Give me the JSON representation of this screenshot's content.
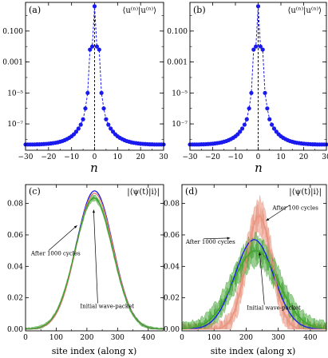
{
  "chart_data": [
    {
      "panel_id": "a",
      "panel_label": "(a)",
      "type": "scatter",
      "corner_label": "⟨u⁽ⁿ⁾|u⁽ⁿ⁾⟩",
      "xlabel": "n",
      "ylabel": "",
      "xlim": [
        -30,
        30
      ],
      "ylim_log10": [
        -8.7,
        0.85
      ],
      "log_y": true,
      "x_ticks": [
        -30,
        -20,
        -10,
        0,
        10,
        20,
        30
      ],
      "x_tick_labels": [
        "−30",
        "−20",
        "−10",
        "0",
        "10",
        "20",
        "30"
      ],
      "y_ticks_log10": [
        -1,
        -3,
        -5,
        -7
      ],
      "y_tick_labels": [
        "0.100",
        "0.001",
        "10⁻⁵",
        "10⁻⁷"
      ],
      "vline_x": 0,
      "series_color": "#1a1aee",
      "x": [
        -30,
        -29,
        -28,
        -27,
        -26,
        -25,
        -24,
        -23,
        -22,
        -21,
        -20,
        -19,
        -18,
        -17,
        -16,
        -15,
        -14,
        -13,
        -12,
        -11,
        -10,
        -9,
        -8,
        -7,
        -6,
        -5,
        -4,
        -3,
        -2,
        -1,
        0,
        1,
        2,
        3,
        4,
        5,
        6,
        7,
        8,
        9,
        10,
        11,
        12,
        13,
        14,
        15,
        16,
        17,
        18,
        19,
        20,
        21,
        22,
        23,
        24,
        25,
        26,
        27,
        28,
        29,
        30
      ],
      "log10_y": [
        -8.33,
        -8.33,
        -8.33,
        -8.33,
        -8.33,
        -8.32,
        -8.32,
        -8.31,
        -8.3,
        -8.29,
        -8.28,
        -8.26,
        -8.24,
        -8.22,
        -8.19,
        -8.15,
        -8.11,
        -8.05,
        -7.98,
        -7.9,
        -7.8,
        -7.67,
        -7.5,
        -7.3,
        -7.05,
        -6.7,
        -6.0,
        -5.0,
        -2.2,
        -2.0,
        0.6,
        -2.0,
        -2.2,
        -5.0,
        -6.0,
        -6.7,
        -7.05,
        -7.3,
        -7.5,
        -7.67,
        -7.8,
        -7.9,
        -7.98,
        -8.05,
        -8.11,
        -8.15,
        -8.19,
        -8.22,
        -8.24,
        -8.26,
        -8.28,
        -8.29,
        -8.3,
        -8.31,
        -8.32,
        -8.32,
        -8.33,
        -8.33,
        -8.33,
        -8.33,
        -8.33
      ]
    },
    {
      "panel_id": "b",
      "panel_label": "(b)",
      "type": "scatter",
      "corner_label": "⟨u⁽ⁿ⁾|u⁽ⁿ⁾⟩",
      "xlabel": "n",
      "ylabel": "",
      "xlim": [
        -30,
        30
      ],
      "ylim_log10": [
        -8.7,
        0.85
      ],
      "log_y": true,
      "x_ticks": [
        -30,
        -20,
        -10,
        0,
        10,
        20,
        30
      ],
      "x_tick_labels": [
        "−30",
        "−20",
        "−10",
        "0",
        "10",
        "20",
        "30"
      ],
      "y_ticks_log10": [
        -1,
        -3,
        -5,
        -7
      ],
      "y_tick_labels": [
        "0.100",
        "0.001",
        "10⁻⁵",
        "10⁻⁷"
      ],
      "vline_x": 0,
      "series_color": "#1a1aee",
      "x": [
        -30,
        -29,
        -28,
        -27,
        -26,
        -25,
        -24,
        -23,
        -22,
        -21,
        -20,
        -19,
        -18,
        -17,
        -16,
        -15,
        -14,
        -13,
        -12,
        -11,
        -10,
        -9,
        -8,
        -7,
        -6,
        -5,
        -4,
        -3,
        -2,
        -1,
        0,
        1,
        2,
        3,
        4,
        5,
        6,
        7,
        8,
        9,
        10,
        11,
        12,
        13,
        14,
        15,
        16,
        17,
        18,
        19,
        20,
        21,
        22,
        23,
        24,
        25,
        26,
        27,
        28,
        29,
        30
      ],
      "log10_y": [
        -8.33,
        -8.33,
        -8.33,
        -8.33,
        -8.33,
        -8.32,
        -8.32,
        -8.31,
        -8.3,
        -8.29,
        -8.28,
        -8.26,
        -8.24,
        -8.22,
        -8.19,
        -8.15,
        -8.11,
        -8.05,
        -7.98,
        -7.9,
        -7.8,
        -7.67,
        -7.5,
        -7.3,
        -7.05,
        -6.7,
        -6.0,
        -5.0,
        -2.2,
        -2.0,
        0.6,
        -2.0,
        -2.2,
        -5.0,
        -6.0,
        -6.7,
        -7.05,
        -7.3,
        -7.5,
        -7.67,
        -7.8,
        -7.9,
        -7.98,
        -8.05,
        -8.11,
        -8.15,
        -8.19,
        -8.22,
        -8.24,
        -8.26,
        -8.28,
        -8.29,
        -8.3,
        -8.31,
        -8.32,
        -8.32,
        -8.33,
        -8.33,
        -8.33,
        -8.33,
        -8.33
      ]
    },
    {
      "panel_id": "c",
      "panel_label": "(c)",
      "type": "line",
      "corner_label": "|⟨ψ(t)|i⟩|",
      "xlabel": "site index (along x)",
      "ylabel": "",
      "xlim": [
        0,
        450
      ],
      "ylim": [
        -0.001,
        0.092
      ],
      "x_ticks": [
        0,
        100,
        200,
        300,
        400
      ],
      "y_ticks": [
        0.0,
        0.02,
        0.04,
        0.06,
        0.08
      ],
      "y_tick_labels": [
        "0.00",
        "0.02",
        "0.04",
        "0.06",
        "0.08"
      ],
      "gauss": {
        "center": 225,
        "sigma": 60,
        "amplitude": 0.088
      },
      "series": [
        {
          "name": "Initial wave-packet",
          "color": "#1a1aee",
          "center": 225,
          "sigma": 60,
          "amplitude": 0.088
        },
        {
          "name": "",
          "color": "#e07a6a",
          "center": 225,
          "sigma": 60,
          "amplitude": 0.0865
        },
        {
          "name": "After 1000 cycles",
          "color": "#3aa02a",
          "center": 223,
          "sigma": 61,
          "amplitude": 0.0835,
          "band": 0.0025
        }
      ],
      "annotations": [
        {
          "text": "After 1000 cycles",
          "text_x": 18,
          "text_y": 0.047,
          "arrow_to_x": 168,
          "arrow_to_y": 0.066
        },
        {
          "text": "Initial wave-packet",
          "text_x": 178,
          "text_y": 0.0135,
          "arrow_to_x": 222,
          "arrow_to_y": 0.076
        }
      ]
    },
    {
      "panel_id": "d",
      "panel_label": "(d)",
      "type": "line",
      "corner_label": "|⟨ψ(t)|i⟩|",
      "xlabel": "site index (along x)",
      "ylabel": "",
      "xlim": [
        0,
        450
      ],
      "ylim": [
        -0.001,
        0.092
      ],
      "x_ticks": [
        0,
        100,
        200,
        300,
        400
      ],
      "y_ticks": [
        0.0,
        0.02,
        0.04,
        0.06,
        0.08
      ],
      "y_tick_labels": [
        "0.00",
        "0.02",
        "0.04",
        "0.06",
        "0.08"
      ],
      "gauss": {
        "center": 225,
        "sigma": 60,
        "amplitude": 0.057
      },
      "series": [
        {
          "name": "Initial wave-packet",
          "color": "#1a1aee",
          "center": 225,
          "sigma": 60,
          "amplitude": 0.057
        },
        {
          "name": "After 100 cycles",
          "color": "#e8907a",
          "center": 240,
          "sigma": 40,
          "amplitude": 0.072,
          "band": 0.014
        },
        {
          "name": "After 1000 cycles",
          "color": "#3aa02a",
          "center": 230,
          "sigma": 70,
          "amplitude": 0.05,
          "band": 0.012
        }
      ],
      "annotations": [
        {
          "text": "After 100 cycles",
          "text_x": 282,
          "text_y": 0.076,
          "arrow_to_x": 262,
          "arrow_to_y": 0.069
        },
        {
          "text": "After 1000 cycles",
          "text_x": 12,
          "text_y": 0.0545,
          "arrow_to_x": 150,
          "arrow_to_y": 0.058
        },
        {
          "text": "Initial wave-packet",
          "text_x": 202,
          "text_y": 0.0125,
          "arrow_to_x": 242,
          "arrow_to_y": 0.049
        }
      ]
    }
  ]
}
